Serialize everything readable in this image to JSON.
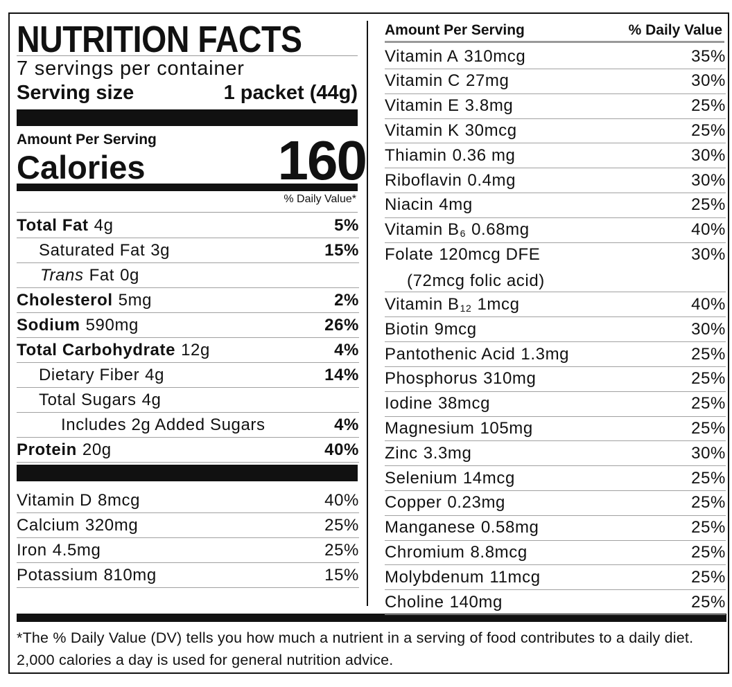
{
  "title": "NUTRITION FACTS",
  "servings": "7 servings per container",
  "serving_size": {
    "label": "Serving size",
    "value": "1 packet (44g)"
  },
  "amount_per_serving": "Amount Per Serving",
  "calories": {
    "label": "Calories",
    "value": "160"
  },
  "dv_header": "% Daily Value*",
  "left_rows": [
    {
      "name": "Total Fat",
      "amount": "4g",
      "dv": "5%"
    },
    {
      "name": "Saturated Fat",
      "amount": "3g",
      "dv": "15%"
    },
    {
      "prefix": "Trans",
      "name": "Fat",
      "amount": "0g"
    },
    {
      "name": "Cholesterol",
      "amount": "5mg",
      "dv": "2%"
    },
    {
      "name": "Sodium",
      "amount": "590mg",
      "dv": "26%"
    },
    {
      "name": "Total Carbohydrate",
      "amount": "12g",
      "dv": "4%"
    },
    {
      "name": "Dietary Fiber",
      "amount": "4g",
      "dv": "14%"
    },
    {
      "name": "Total Sugars",
      "amount": "4g"
    },
    {
      "name": "Includes 2g Added Sugars",
      "dv": "4%"
    },
    {
      "name": "Protein",
      "amount": "20g",
      "dv": "40%"
    }
  ],
  "left_vitamins": [
    {
      "name": "Vitamin D",
      "amount": "8mcg",
      "dv": "40%"
    },
    {
      "name": "Calcium",
      "amount": "320mg",
      "dv": "25%"
    },
    {
      "name": "Iron",
      "amount": "4.5mg",
      "dv": "25%"
    },
    {
      "name": "Potassium",
      "amount": "810mg",
      "dv": "15%"
    }
  ],
  "right_header": {
    "left": "Amount Per Serving",
    "right": "% Daily Value"
  },
  "right_rows": [
    {
      "name": "Vitamin A",
      "amount": "310mcg",
      "dv": "35%"
    },
    {
      "name": "Vitamin C",
      "amount": "27mg",
      "dv": "30%"
    },
    {
      "name": "Vitamin E",
      "amount": "3.8mg",
      "dv": "25%"
    },
    {
      "name": "Vitamin K",
      "amount": "30mcg",
      "dv": "25%"
    },
    {
      "name": "Thiamin",
      "amount": "0.36 mg",
      "dv": "30%"
    },
    {
      "name": "Riboflavin",
      "amount": "0.4mg",
      "dv": "30%"
    },
    {
      "name": "Niacin",
      "amount": "4mg",
      "dv": "25%"
    },
    {
      "name": "Vitamin B",
      "sub": "6",
      "amount": "0.68mg",
      "dv": "40%"
    },
    {
      "name": "Folate",
      "amount": "120mcg DFE",
      "note": "(72mcg folic acid)",
      "dv": "30%"
    },
    {
      "name": "Vitamin B",
      "sub": "12",
      "amount": "1mcg",
      "dv": "40%"
    },
    {
      "name": "Biotin",
      "amount": "9mcg",
      "dv": "30%"
    },
    {
      "name": "Pantothenic Acid",
      "amount": "1.3mg",
      "dv": "25%"
    },
    {
      "name": "Phosphorus",
      "amount": "310mg",
      "dv": "25%"
    },
    {
      "name": "Iodine",
      "amount": "38mcg",
      "dv": "25%"
    },
    {
      "name": "Magnesium",
      "amount": "105mg",
      "dv": "25%"
    },
    {
      "name": "Zinc",
      "amount": "3.3mg",
      "dv": "30%"
    },
    {
      "name": "Selenium",
      "amount": "14mcg",
      "dv": "25%"
    },
    {
      "name": "Copper",
      "amount": "0.23mg",
      "dv": "25%"
    },
    {
      "name": "Manganese",
      "amount": "0.58mg",
      "dv": "25%"
    },
    {
      "name": "Chromium",
      "amount": "8.8mcg",
      "dv": "25%"
    },
    {
      "name": "Molybdenum",
      "amount": "11mcg",
      "dv": "25%"
    },
    {
      "name": "Choline",
      "amount": "140mg",
      "dv": "25%"
    }
  ],
  "footnote": "*The % Daily Value (DV) tells you how much a nutrient in a serving of food contributes to a daily diet. 2,000 calories a day is used for general nutrition advice."
}
